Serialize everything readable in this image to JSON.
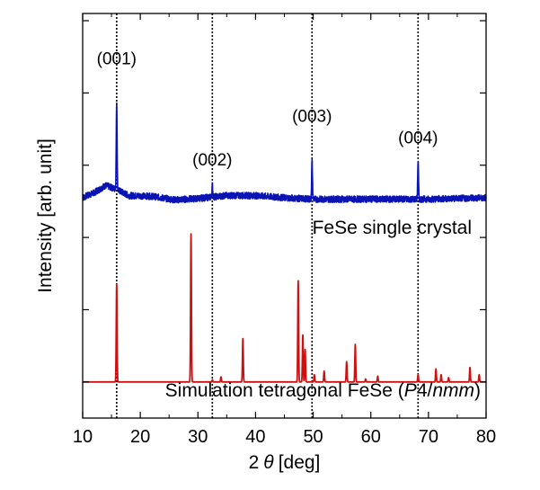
{
  "chart_data": {
    "type": "line",
    "xlabel": "2 θ [deg]",
    "xlabel_prefix": "2",
    "xlabel_symbol": "θ",
    "xlabel_unit": "[deg]",
    "ylabel": "Intensity [arb. unit]",
    "xlim": [
      10,
      80
    ],
    "ylim": [
      -0.5,
      5.1
    ],
    "x_ticks": [
      10,
      20,
      30,
      40,
      50,
      60,
      70,
      80
    ],
    "y_tick_labels": "none",
    "grid": false,
    "reference_lines": [
      15.9,
      32.5,
      49.8,
      68.2
    ],
    "peak_labels": [
      {
        "text": "(001)",
        "x": 15.9,
        "y": 4.4
      },
      {
        "text": "(002)",
        "x": 32.5,
        "y": 3.0
      },
      {
        "text": "(003)",
        "x": 49.8,
        "y": 3.6
      },
      {
        "text": "(004)",
        "x": 68.2,
        "y": 3.3
      }
    ],
    "series": [
      {
        "name": "FeSe single crystal",
        "color": "#0a14b4",
        "baseline": [
          [
            10,
            2.55
          ],
          [
            12,
            2.62
          ],
          [
            14,
            2.72
          ],
          [
            16,
            2.66
          ],
          [
            18,
            2.58
          ],
          [
            22,
            2.57
          ],
          [
            26,
            2.52
          ],
          [
            30,
            2.54
          ],
          [
            35,
            2.58
          ],
          [
            40,
            2.58
          ],
          [
            45,
            2.55
          ],
          [
            50,
            2.53
          ],
          [
            60,
            2.53
          ],
          [
            70,
            2.53
          ],
          [
            80,
            2.55
          ]
        ],
        "peaks": [
          {
            "x": 15.9,
            "height": 3.87
          },
          {
            "x": 32.5,
            "height": 2.72
          },
          {
            "x": 49.8,
            "height": 3.05
          },
          {
            "x": 68.2,
            "height": 3.05
          }
        ]
      },
      {
        "name": "Simulation tetragonal FeSe (P4/nmm)",
        "color": "#cc1111",
        "baseline": [
          [
            10,
            0.0
          ],
          [
            80,
            0.0
          ]
        ],
        "peaks": [
          {
            "x": 15.9,
            "height": 1.35
          },
          {
            "x": 28.8,
            "height": 2.05
          },
          {
            "x": 32.5,
            "height": 0.03
          },
          {
            "x": 34.0,
            "height": 0.07
          },
          {
            "x": 37.8,
            "height": 0.6
          },
          {
            "x": 47.4,
            "height": 1.4
          },
          {
            "x": 48.2,
            "height": 0.65
          },
          {
            "x": 48.6,
            "height": 0.45
          },
          {
            "x": 50.2,
            "height": 0.1
          },
          {
            "x": 51.9,
            "height": 0.15
          },
          {
            "x": 55.8,
            "height": 0.28
          },
          {
            "x": 57.3,
            "height": 0.52
          },
          {
            "x": 59.1,
            "height": 0.04
          },
          {
            "x": 61.2,
            "height": 0.08
          },
          {
            "x": 68.2,
            "height": 0.1
          },
          {
            "x": 71.3,
            "height": 0.18
          },
          {
            "x": 72.2,
            "height": 0.1
          },
          {
            "x": 73.5,
            "height": 0.06
          },
          {
            "x": 77.2,
            "height": 0.2
          },
          {
            "x": 78.8,
            "height": 0.1
          }
        ]
      }
    ],
    "legend": [
      {
        "text": "FeSe single crystal",
        "color": "#0a14b4",
        "placement": "right, below crystal trace"
      },
      {
        "text_prefix": "Simulation tetragonal FeSe (",
        "text_italic_a": "P",
        "text_plain": "4/",
        "text_italic_b": "nmm",
        "text_suffix": ")",
        "color": "#cc1111",
        "placement": "bottom, below simulation trace"
      }
    ]
  }
}
